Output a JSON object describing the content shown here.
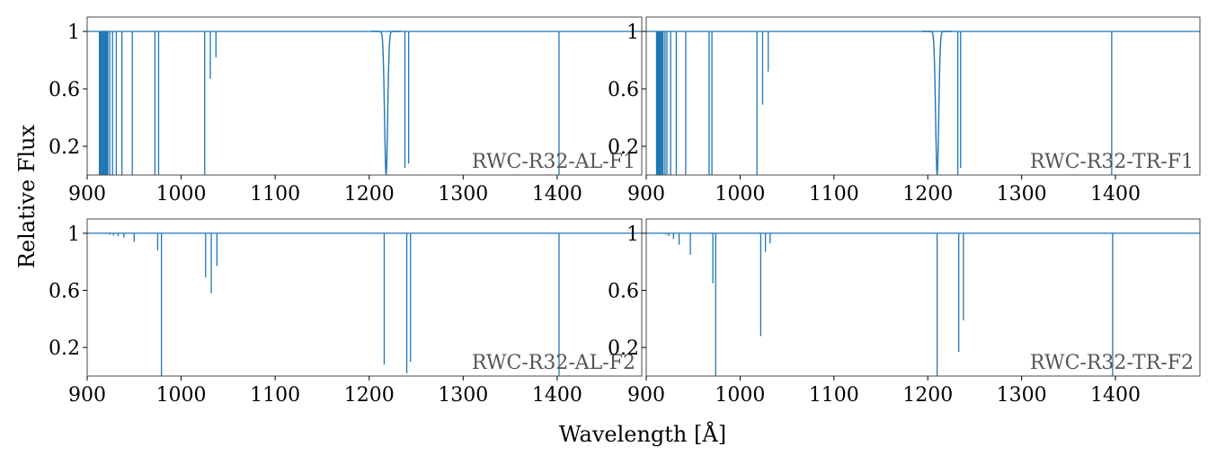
{
  "figure": {
    "xlabel": "Wavelength [Å]",
    "ylabel": "Relative Flux"
  },
  "chart_data": [
    {
      "type": "line",
      "panel": "RWC-R32-AL-F1",
      "label": "RWC-R32-AL-F1",
      "xlim": [
        900,
        1490
      ],
      "ylim": [
        0,
        1.1
      ],
      "xticks": [
        900,
        1000,
        1100,
        1200,
        1300,
        1400
      ],
      "yticks": [
        0.2,
        0.6,
        1
      ],
      "ytick_labels": [
        "0.2",
        "0.6",
        "1"
      ],
      "color": "#1f77b4",
      "continuum": 1.0,
      "broad_lines": [
        {
          "x": 1218,
          "depth": 1.0,
          "width": 4
        }
      ],
      "lines": [
        {
          "x": 913,
          "min": 0.0
        },
        {
          "x": 914,
          "min": 0.0
        },
        {
          "x": 915,
          "min": 0.0
        },
        {
          "x": 916,
          "min": 0.0
        },
        {
          "x": 917,
          "min": 0.0
        },
        {
          "x": 918,
          "min": 0.0
        },
        {
          "x": 919,
          "min": 0.0
        },
        {
          "x": 920,
          "min": 0.0
        },
        {
          "x": 921,
          "min": 0.0
        },
        {
          "x": 922,
          "min": 0.0
        },
        {
          "x": 924,
          "min": 0.0
        },
        {
          "x": 927,
          "min": 0.0
        },
        {
          "x": 931,
          "min": 0.0
        },
        {
          "x": 937,
          "min": 0.0
        },
        {
          "x": 948,
          "min": 0.0
        },
        {
          "x": 972,
          "min": 0.0
        },
        {
          "x": 976,
          "min": 0.0
        },
        {
          "x": 1025,
          "min": 0.0
        },
        {
          "x": 1031,
          "min": 0.67
        },
        {
          "x": 1037,
          "min": 0.82
        },
        {
          "x": 1238,
          "min": 0.05
        },
        {
          "x": 1242,
          "min": 0.08
        },
        {
          "x": 1402,
          "min": 0.0
        }
      ]
    },
    {
      "type": "line",
      "panel": "RWC-R32-TR-F1",
      "label": "RWC-R32-TR-F1",
      "xlim": [
        900,
        1490
      ],
      "ylim": [
        0,
        1.1
      ],
      "xticks": [
        900,
        1000,
        1100,
        1200,
        1300,
        1400
      ],
      "yticks": [
        0.2,
        0.6,
        1
      ],
      "ytick_labels": [
        "0.2",
        "0.6",
        "1"
      ],
      "color": "#1f77b4",
      "continuum": 1.0,
      "broad_lines": [
        {
          "x": 1210,
          "depth": 1.0,
          "width": 4
        }
      ],
      "lines": [
        {
          "x": 911,
          "min": 0.0
        },
        {
          "x": 912,
          "min": 0.0
        },
        {
          "x": 913,
          "min": 0.0
        },
        {
          "x": 914,
          "min": 0.0
        },
        {
          "x": 915,
          "min": 0.0
        },
        {
          "x": 916,
          "min": 0.0
        },
        {
          "x": 917,
          "min": 0.0
        },
        {
          "x": 918,
          "min": 0.0
        },
        {
          "x": 920,
          "min": 0.0
        },
        {
          "x": 922,
          "min": 0.0
        },
        {
          "x": 926,
          "min": 0.0
        },
        {
          "x": 932,
          "min": 0.0
        },
        {
          "x": 942,
          "min": 0.0
        },
        {
          "x": 967,
          "min": 0.0
        },
        {
          "x": 970,
          "min": 0.0
        },
        {
          "x": 1018,
          "min": 0.0
        },
        {
          "x": 1024,
          "min": 0.49
        },
        {
          "x": 1030,
          "min": 0.72
        },
        {
          "x": 1232,
          "min": 0.0
        },
        {
          "x": 1235,
          "min": 0.05
        },
        {
          "x": 1396,
          "min": 0.0
        }
      ]
    },
    {
      "type": "line",
      "panel": "RWC-R32-AL-F2",
      "label": "RWC-R32-AL-F2",
      "xlim": [
        900,
        1490
      ],
      "ylim": [
        0,
        1.1
      ],
      "xticks": [
        900,
        1000,
        1100,
        1200,
        1300,
        1400
      ],
      "yticks": [
        0.2,
        0.6,
        1
      ],
      "ytick_labels": [
        "0.2",
        "0.6",
        "1"
      ],
      "color": "#1f77b4",
      "continuum": 1.0,
      "broad_lines": [],
      "lines": [
        {
          "x": 920,
          "min": 0.995
        },
        {
          "x": 924,
          "min": 0.99
        },
        {
          "x": 928,
          "min": 0.985
        },
        {
          "x": 933,
          "min": 0.98
        },
        {
          "x": 939,
          "min": 0.97
        },
        {
          "x": 950,
          "min": 0.94
        },
        {
          "x": 975,
          "min": 0.88
        },
        {
          "x": 979,
          "min": 0.0
        },
        {
          "x": 1026,
          "min": 0.69
        },
        {
          "x": 1032,
          "min": 0.58
        },
        {
          "x": 1038,
          "min": 0.77
        },
        {
          "x": 1216,
          "min": 0.08
        },
        {
          "x": 1240,
          "min": 0.02
        },
        {
          "x": 1244,
          "min": 0.1
        },
        {
          "x": 1402,
          "min": 0.0
        }
      ]
    },
    {
      "type": "line",
      "panel": "RWC-R32-TR-F2",
      "label": "RWC-R32-TR-F2",
      "xlim": [
        900,
        1490
      ],
      "ylim": [
        0,
        1.1
      ],
      "xticks": [
        900,
        1000,
        1100,
        1200,
        1300,
        1400
      ],
      "yticks": [
        0.2,
        0.6,
        1
      ],
      "ytick_labels": [
        "0.2",
        "0.6",
        "1"
      ],
      "color": "#1f77b4",
      "continuum": 1.0,
      "broad_lines": [],
      "lines": [
        {
          "x": 917,
          "min": 0.995
        },
        {
          "x": 921,
          "min": 0.99
        },
        {
          "x": 924,
          "min": 0.98
        },
        {
          "x": 929,
          "min": 0.96
        },
        {
          "x": 935,
          "min": 0.92
        },
        {
          "x": 947,
          "min": 0.85
        },
        {
          "x": 971,
          "min": 0.65
        },
        {
          "x": 974,
          "min": 0.0
        },
        {
          "x": 1022,
          "min": 0.28
        },
        {
          "x": 1027,
          "min": 0.87
        },
        {
          "x": 1032,
          "min": 0.93
        },
        {
          "x": 1210,
          "min": 0.0
        },
        {
          "x": 1233,
          "min": 0.17
        },
        {
          "x": 1238,
          "min": 0.39
        },
        {
          "x": 1397,
          "min": 0.0
        }
      ]
    }
  ]
}
